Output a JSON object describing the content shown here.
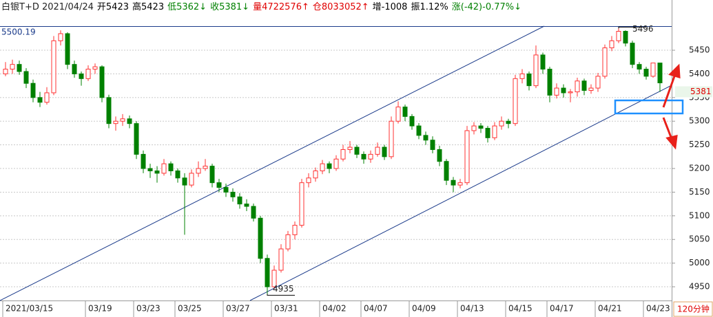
{
  "chart_data": {
    "type": "candlestick",
    "title": "白银T+D 2021/04/24",
    "quote": [
      {
        "text": "开5423",
        "color": "#000000"
      },
      {
        "text": "高5423",
        "color": "#000000"
      },
      {
        "text": "低5362↓",
        "color": "#008000"
      },
      {
        "text": "收5381↓",
        "color": "#008000"
      },
      {
        "text": "量4722576↑",
        "color": "#e00000"
      },
      {
        "text": "仓8033052↑",
        "color": "#e00000"
      },
      {
        "text": "增-1008",
        "color": "#000000"
      },
      {
        "text": "振1.12%",
        "color": "#000000"
      },
      {
        "text": "涨(-42)-0.77%↓",
        "color": "#008000"
      }
    ],
    "period": "120分钟",
    "up_color": "#ff3232",
    "down_color": "#008000",
    "grid": true,
    "ylim": [
      4921,
      5500.19
    ],
    "yticks": [
      4950,
      5000,
      5050,
      5100,
      5150,
      5200,
      5250,
      5300,
      5350,
      5400,
      5450
    ],
    "xticks": [
      {
        "value": 0,
        "label": "2021/03/15"
      },
      {
        "value": 12,
        "label": "03/19"
      },
      {
        "value": 19,
        "label": "03/23"
      },
      {
        "value": 25,
        "label": "03/25"
      },
      {
        "value": 32,
        "label": "03/27"
      },
      {
        "value": 39,
        "label": "03/31"
      },
      {
        "value": 46,
        "label": "04/02"
      },
      {
        "value": 52,
        "label": "04/07"
      },
      {
        "value": 59,
        "label": "04/09"
      },
      {
        "value": 66,
        "label": "04/13"
      },
      {
        "value": 73,
        "label": "04/15"
      },
      {
        "value": 79,
        "label": "04/17"
      },
      {
        "value": 86,
        "label": "04/21"
      },
      {
        "value": 93,
        "label": "04/23"
      }
    ],
    "candles": [
      [
        5400,
        5425,
        5395,
        5410
      ],
      [
        5410,
        5430,
        5400,
        5420
      ],
      [
        5420,
        5428,
        5398,
        5405
      ],
      [
        5405,
        5412,
        5370,
        5380
      ],
      [
        5380,
        5388,
        5340,
        5350
      ],
      [
        5350,
        5362,
        5330,
        5340
      ],
      [
        5340,
        5372,
        5335,
        5360
      ],
      [
        5360,
        5480,
        5355,
        5470
      ],
      [
        5470,
        5492,
        5460,
        5485
      ],
      [
        5485,
        5488,
        5410,
        5420
      ],
      [
        5420,
        5428,
        5392,
        5400
      ],
      [
        5400,
        5405,
        5375,
        5390
      ],
      [
        5390,
        5418,
        5385,
        5410
      ],
      [
        5410,
        5422,
        5400,
        5415
      ],
      [
        5415,
        5418,
        5340,
        5350
      ],
      [
        5350,
        5356,
        5285,
        5295
      ],
      [
        5295,
        5310,
        5280,
        5300
      ],
      [
        5300,
        5315,
        5290,
        5305
      ],
      [
        5305,
        5312,
        5285,
        5295
      ],
      [
        5295,
        5300,
        5220,
        5230
      ],
      [
        5230,
        5238,
        5190,
        5200
      ],
      [
        5200,
        5210,
        5180,
        5195
      ],
      [
        5195,
        5205,
        5170,
        5190
      ],
      [
        5190,
        5220,
        5185,
        5210
      ],
      [
        5210,
        5215,
        5185,
        5195
      ],
      [
        5195,
        5200,
        5170,
        5180
      ],
      [
        5180,
        5190,
        5060,
        5165
      ],
      [
        5165,
        5198,
        5160,
        5190
      ],
      [
        5190,
        5215,
        5182,
        5200
      ],
      [
        5200,
        5220,
        5195,
        5205
      ],
      [
        5205,
        5210,
        5160,
        5170
      ],
      [
        5170,
        5178,
        5150,
        5160
      ],
      [
        5160,
        5168,
        5140,
        5150
      ],
      [
        5150,
        5158,
        5130,
        5140
      ],
      [
        5140,
        5148,
        5115,
        5125
      ],
      [
        5125,
        5135,
        5110,
        5120
      ],
      [
        5120,
        5126,
        5088,
        5095
      ],
      [
        5095,
        5100,
        5000,
        5010
      ],
      [
        5010,
        5018,
        4935,
        4950
      ],
      [
        4950,
        4995,
        4945,
        4985
      ],
      [
        4985,
        5040,
        4980,
        5030
      ],
      [
        5030,
        5068,
        5025,
        5060
      ],
      [
        5060,
        5088,
        5050,
        5080
      ],
      [
        5080,
        5178,
        5075,
        5170
      ],
      [
        5170,
        5190,
        5160,
        5180
      ],
      [
        5180,
        5202,
        5172,
        5195
      ],
      [
        5195,
        5218,
        5188,
        5210
      ],
      [
        5210,
        5215,
        5190,
        5200
      ],
      [
        5200,
        5228,
        5195,
        5220
      ],
      [
        5220,
        5250,
        5215,
        5240
      ],
      [
        5240,
        5258,
        5232,
        5245
      ],
      [
        5245,
        5250,
        5222,
        5230
      ],
      [
        5230,
        5236,
        5210,
        5220
      ],
      [
        5220,
        5238,
        5212,
        5230
      ],
      [
        5230,
        5255,
        5225,
        5245
      ],
      [
        5245,
        5250,
        5218,
        5225
      ],
      [
        5225,
        5310,
        5220,
        5300
      ],
      [
        5300,
        5342,
        5295,
        5330
      ],
      [
        5330,
        5335,
        5300,
        5310
      ],
      [
        5310,
        5315,
        5282,
        5290
      ],
      [
        5290,
        5296,
        5262,
        5270
      ],
      [
        5270,
        5278,
        5250,
        5260
      ],
      [
        5260,
        5268,
        5232,
        5240
      ],
      [
        5240,
        5248,
        5205,
        5215
      ],
      [
        5215,
        5220,
        5165,
        5175
      ],
      [
        5175,
        5182,
        5150,
        5165
      ],
      [
        5165,
        5178,
        5158,
        5170
      ],
      [
        5170,
        5290,
        5165,
        5280
      ],
      [
        5280,
        5298,
        5272,
        5290
      ],
      [
        5290,
        5296,
        5275,
        5285
      ],
      [
        5285,
        5290,
        5255,
        5265
      ],
      [
        5265,
        5298,
        5260,
        5290
      ],
      [
        5290,
        5310,
        5282,
        5300
      ],
      [
        5300,
        5305,
        5285,
        5295
      ],
      [
        5295,
        5398,
        5290,
        5390
      ],
      [
        5390,
        5410,
        5380,
        5400
      ],
      [
        5400,
        5405,
        5365,
        5375
      ],
      [
        5375,
        5460,
        5370,
        5440
      ],
      [
        5440,
        5445,
        5400,
        5410
      ],
      [
        5410,
        5415,
        5340,
        5355
      ],
      [
        5355,
        5380,
        5348,
        5370
      ],
      [
        5370,
        5378,
        5350,
        5360
      ],
      [
        5360,
        5368,
        5340,
        5362
      ],
      [
        5362,
        5392,
        5352,
        5385
      ],
      [
        5385,
        5390,
        5355,
        5365
      ],
      [
        5365,
        5378,
        5358,
        5370
      ],
      [
        5370,
        5402,
        5362,
        5395
      ],
      [
        5395,
        5462,
        5390,
        5455
      ],
      [
        5455,
        5480,
        5448,
        5470
      ],
      [
        5470,
        5496,
        5465,
        5490
      ],
      [
        5490,
        5492,
        5458,
        5465
      ],
      [
        5465,
        5470,
        5412,
        5420
      ],
      [
        5420,
        5425,
        5400,
        5410
      ],
      [
        5410,
        5415,
        5388,
        5395
      ],
      [
        5395,
        5423,
        5392,
        5423
      ],
      [
        5423,
        5423,
        5362,
        5381
      ]
    ]
  }
}
